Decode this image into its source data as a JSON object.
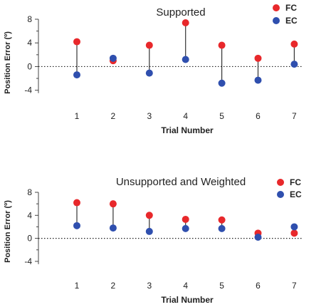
{
  "chart_data": [
    {
      "type": "scatter",
      "title": "Supported",
      "xlabel": "Trial Number",
      "ylabel": "Position Error (º)",
      "x": [
        1,
        2,
        3,
        4,
        5,
        6,
        7
      ],
      "xticks": [
        "1",
        "2",
        "3",
        "4",
        "5",
        "6",
        "7"
      ],
      "yticks": [
        "-4",
        "0",
        "4",
        "8"
      ],
      "ylim": [
        -5,
        8
      ],
      "reference_line": 0,
      "series": [
        {
          "name": "FC",
          "color": "#e8282b",
          "values": [
            4.2,
            1.0,
            3.6,
            7.4,
            3.6,
            1.4,
            3.8
          ]
        },
        {
          "name": "EC",
          "color": "#2f4fae",
          "values": [
            -1.4,
            1.4,
            -1.1,
            1.2,
            -2.8,
            -2.3,
            0.4
          ]
        }
      ],
      "legend": "top-right"
    },
    {
      "type": "scatter",
      "title": "Unsupported and Weighted",
      "xlabel": "Trial Number",
      "ylabel": "Position Error (º)",
      "x": [
        1,
        2,
        3,
        4,
        5,
        6,
        7
      ],
      "xticks": [
        "1",
        "2",
        "3",
        "4",
        "5",
        "6",
        "7"
      ],
      "yticks": [
        "-4",
        "0",
        "4",
        "8"
      ],
      "ylim": [
        -5,
        8
      ],
      "reference_line": 0,
      "series": [
        {
          "name": "FC",
          "color": "#e8282b",
          "values": [
            6.2,
            6.0,
            4.0,
            3.3,
            3.2,
            0.9,
            0.9
          ]
        },
        {
          "name": "EC",
          "color": "#2f4fae",
          "values": [
            2.2,
            1.8,
            1.2,
            1.7,
            1.7,
            0.2,
            2.0
          ]
        }
      ],
      "legend": "top-right"
    }
  ]
}
